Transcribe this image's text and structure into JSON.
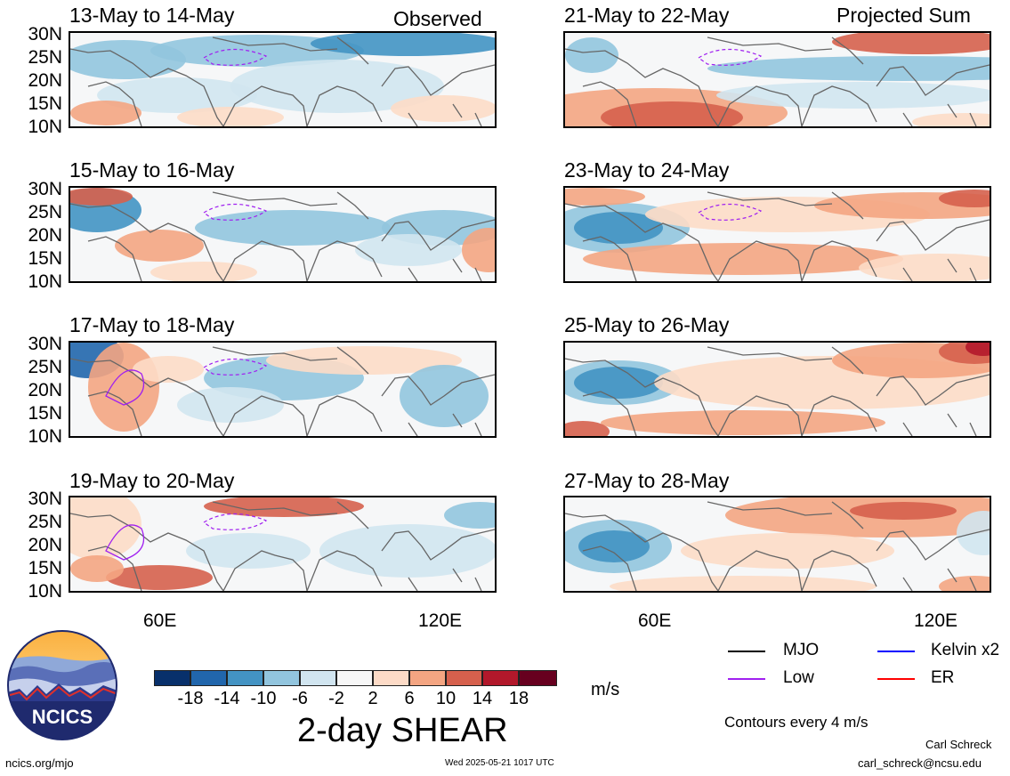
{
  "header": {
    "left_label": "Observed",
    "right_label": "Projected Sum"
  },
  "panels": {
    "observed": [
      {
        "title": "13-May to 14-May"
      },
      {
        "title": "15-May to 16-May"
      },
      {
        "title": "17-May to 18-May"
      },
      {
        "title": "19-May to 20-May"
      }
    ],
    "projected": [
      {
        "title": "21-May to 22-May"
      },
      {
        "title": "23-May to 24-May"
      },
      {
        "title": "25-May to 26-May"
      },
      {
        "title": "27-May to 28-May"
      }
    ]
  },
  "axes": {
    "lat_labels": [
      "30N",
      "25N",
      "20N",
      "15N",
      "10N"
    ],
    "lon_labels": [
      "60E",
      "120E"
    ]
  },
  "colorbar": {
    "title": "2-day SHEAR",
    "units": "m/s",
    "tick_labels": [
      "-18",
      "-14",
      "-10",
      "-6",
      "-2",
      "2",
      "6",
      "10",
      "14",
      "18"
    ],
    "colors": [
      "#08306b",
      "#2166ac",
      "#4393c3",
      "#92c5de",
      "#d1e5f0",
      "#f7f7f7",
      "#fddbc7",
      "#f4a582",
      "#d6604d",
      "#b2182b",
      "#67001f"
    ]
  },
  "legend": {
    "items": [
      {
        "label": "MJO",
        "color": "#000000"
      },
      {
        "label": "Kelvin x2",
        "color": "#0000ff"
      },
      {
        "label": "Low",
        "color": "#a020f0"
      },
      {
        "label": "ER",
        "color": "#ff0000"
      }
    ],
    "note": "Contours every 4 m/s"
  },
  "footer": {
    "logo_text": "NCICS",
    "url": "ncics.org/mjo",
    "timestamp": "Wed 2025-05-21 1017 UTC",
    "author": "Carl Schreck",
    "email": "carl_schreck@ncsu.edu"
  }
}
